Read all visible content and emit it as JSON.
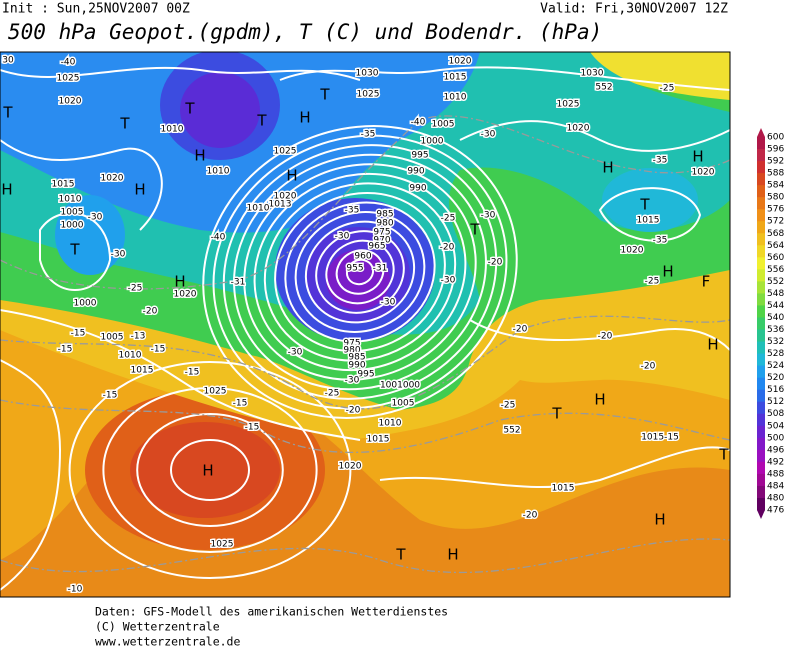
{
  "header": {
    "init": "Init : Sun,25NOV2007 00Z",
    "valid": "Valid: Fri,30NOV2007 12Z",
    "title": "500 hPa Geopot.(gpdm), T (C) und Bodendr. (hPa)"
  },
  "map": {
    "labels": [
      "30",
      "-40",
      "1025",
      "1020",
      "T",
      "T",
      "T",
      "1010",
      "T",
      "H",
      "1010",
      "H",
      "T",
      "1025",
      "1030",
      "1020",
      "1015",
      "1010",
      "1030",
      "552",
      "-25",
      "1025",
      "1020",
      "-30",
      "1005",
      "-40",
      "1000",
      "995",
      "990",
      "-35",
      "1025",
      "H",
      "1020",
      "1013",
      "1010",
      "990",
      "H",
      "1015",
      "1020",
      "H",
      "1010",
      "1005",
      "-30",
      "1000",
      "T",
      "-30",
      "-40",
      "-35",
      "985",
      "980",
      "975",
      "970",
      "965",
      "-30",
      "960",
      "955",
      "-31",
      "-25",
      "-20",
      "T",
      "-30",
      "-20",
      "-30",
      "-35",
      "H",
      "H",
      "1020",
      "T",
      "1015",
      "-35",
      "1020",
      "H",
      "-25",
      "F",
      "H",
      "1020",
      "-31",
      "1000",
      "-25",
      "-20",
      "-15",
      "1005",
      "-13",
      "-15",
      "-15",
      "1010",
      "1015",
      "-15",
      "-30",
      "-30",
      "975",
      "980",
      "985",
      "990",
      "995",
      "-30",
      "1001000",
      "-20",
      "-20",
      "-20",
      "H",
      "-25",
      "1005",
      "-20",
      "-15",
      "1025",
      "-15",
      "-15",
      "T",
      "H",
      "552",
      "-25",
      "1010",
      "1015",
      "1015-15",
      "T",
      "1020",
      "H",
      "1015",
      "-20",
      "H",
      "1025",
      "T",
      "H",
      "-10"
    ]
  },
  "colorbar": {
    "levels": [
      600,
      596,
      592,
      588,
      584,
      580,
      576,
      572,
      568,
      564,
      560,
      556,
      552,
      548,
      544,
      540,
      536,
      532,
      528,
      524,
      520,
      516,
      512,
      508,
      504,
      500,
      496,
      492,
      488,
      484,
      480,
      476
    ],
    "colors": [
      "#b01848",
      "#c02848",
      "#d03030",
      "#d84820",
      "#e06018",
      "#e87818",
      "#f09018",
      "#f0a818",
      "#f0c020",
      "#f0d828",
      "#f0f030",
      "#d0ec30",
      "#a8e438",
      "#80dc40",
      "#50d448",
      "#38cc68",
      "#28c490",
      "#20c0b8",
      "#20b8d8",
      "#20a0ec",
      "#2088f0",
      "#2a6ce8",
      "#3c4ce0",
      "#5234d8",
      "#6a24d0",
      "#8218c8",
      "#9a10c0",
      "#b008b0",
      "#a00894",
      "#820878",
      "#600060"
    ]
  },
  "footer": {
    "lines": [
      "Daten: GFS-Modell des amerikanischen Wetterdienstes",
      "(C) Wetterzentrale",
      "www.wetterzentrale.de"
    ]
  }
}
